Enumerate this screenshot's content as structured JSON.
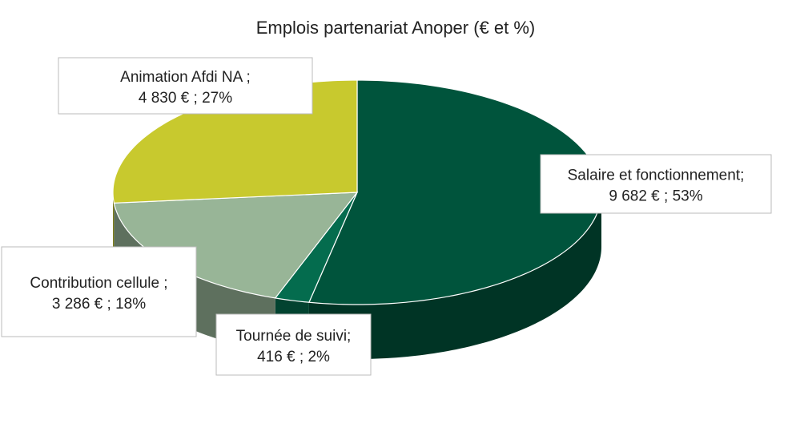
{
  "chart_data": {
    "type": "pie",
    "title": "Emplois partenariat Anoper (€ et %)",
    "categories": [
      "Salaire et fonctionnement;",
      "Tournée de suivi;",
      "Contribution cellule ;",
      "Animation Afdi NA ;"
    ],
    "values": [
      9682,
      416,
      3286,
      4830
    ],
    "value_labels": [
      "9 682 € ; 53%",
      "416 € ; 2%",
      "3 286 € ; 18%",
      "4 830 € ; 27%"
    ],
    "colors": [
      "#00543c",
      "#046c4e",
      "#98b597",
      "#c8c92e"
    ]
  }
}
